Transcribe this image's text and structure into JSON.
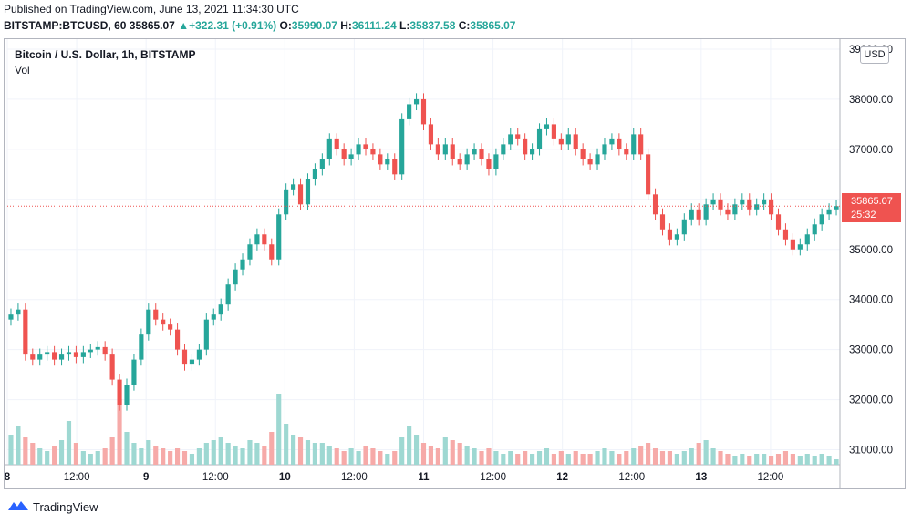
{
  "published": "Published on TradingView.com, June 13, 2021 11:34:30 UTC",
  "quote": {
    "symbol": "BITSTAMP:BTCUSD, 60",
    "last": "35865.07",
    "change": "+322.31 (+0.91%)",
    "o_label": "O:",
    "o": "35990.07",
    "h_label": "H:",
    "h": "36111.24",
    "l_label": "L:",
    "l": "35837.58",
    "c_label": "C:",
    "c": "35865.07"
  },
  "legend": {
    "title": "Bitcoin / U.S. Dollar, 1h, BITSTAMP",
    "vol": "Vol"
  },
  "currency_button": "USD",
  "price_label": {
    "price": "35865.07",
    "countdown": "25:32"
  },
  "brand": "TradingView",
  "colors": {
    "up": "#26a69a",
    "down": "#ef5350",
    "up_vol": "#9ed8d2",
    "down_vol": "#f6aaa8"
  },
  "chart_data": {
    "type": "candlestick",
    "y_ticks": [
      "39000.00",
      "38000.00",
      "37000.00",
      "36000.00",
      "35000.00",
      "34000.00",
      "33000.00",
      "32000.00",
      "31000.00"
    ],
    "y_tick_values": [
      39000,
      38000,
      37000,
      36000,
      35000,
      34000,
      33000,
      32000,
      31000
    ],
    "x_ticks": [
      "8",
      "12:00",
      "9",
      "12:00",
      "10",
      "12:00",
      "11",
      "12:00",
      "12",
      "12:00",
      "13",
      "12:00"
    ],
    "x_tick_hours": [
      0,
      12,
      24,
      36,
      48,
      60,
      72,
      84,
      96,
      108,
      120,
      132
    ],
    "x_start_hour": 0,
    "hours_span": 144,
    "ylim": [
      30700,
      39200
    ],
    "last_price": 35865.07,
    "closes": [
      33700,
      33800,
      32900,
      32800,
      32900,
      32950,
      32800,
      32900,
      32950,
      32850,
      32950,
      33000,
      33050,
      32900,
      32400,
      31900,
      32300,
      32800,
      33300,
      33800,
      33600,
      33500,
      33400,
      33000,
      32700,
      32800,
      33000,
      33600,
      33700,
      33900,
      34300,
      34600,
      34800,
      35100,
      35300,
      35100,
      34800,
      35700,
      36200,
      36300,
      35900,
      36400,
      36600,
      36800,
      37200,
      37000,
      36800,
      36900,
      37100,
      37000,
      36900,
      36700,
      36800,
      36500,
      37600,
      37900,
      38000,
      37500,
      37100,
      36900,
      37100,
      36800,
      36700,
      36900,
      37000,
      36800,
      36600,
      36900,
      37100,
      37300,
      37200,
      36900,
      37000,
      37400,
      37500,
      37200,
      37100,
      37300,
      37000,
      36800,
      36700,
      36900,
      37100,
      37200,
      37000,
      36900,
      37300,
      36900,
      36100,
      35700,
      35400,
      35200,
      35300,
      35600,
      35800,
      35600,
      35900,
      36000,
      35800,
      35700,
      35900,
      36000,
      35800,
      35900,
      36000,
      35700,
      35400,
      35200,
      35000,
      35100,
      35300,
      35500,
      35700,
      35800,
      35865
    ],
    "volumes": [
      1.1,
      1.4,
      1.0,
      0.8,
      0.6,
      0.5,
      0.7,
      0.9,
      1.6,
      0.8,
      0.5,
      0.4,
      0.5,
      0.6,
      1.0,
      2.4,
      1.2,
      0.8,
      0.6,
      0.9,
      0.7,
      0.6,
      0.5,
      0.6,
      0.5,
      0.4,
      0.6,
      0.8,
      0.9,
      1.0,
      0.8,
      0.7,
      0.6,
      0.9,
      0.8,
      0.7,
      1.2,
      2.6,
      1.5,
      1.1,
      1.0,
      0.9,
      0.8,
      0.8,
      0.7,
      0.6,
      0.5,
      0.6,
      0.5,
      0.7,
      0.6,
      0.5,
      0.4,
      0.5,
      1.0,
      1.4,
      1.1,
      0.8,
      0.7,
      0.6,
      1.0,
      0.9,
      0.8,
      0.7,
      0.6,
      0.5,
      0.6,
      0.5,
      0.4,
      0.5,
      0.4,
      0.5,
      0.4,
      0.5,
      0.6,
      0.4,
      0.5,
      0.4,
      0.5,
      0.4,
      0.4,
      0.5,
      0.6,
      0.5,
      0.4,
      0.5,
      0.6,
      0.7,
      0.8,
      0.6,
      0.5,
      0.5,
      0.4,
      0.5,
      0.6,
      0.8,
      0.9,
      0.6,
      0.5,
      0.4,
      0.3,
      0.4,
      0.3,
      0.4,
      0.4,
      0.3,
      0.4,
      0.5,
      0.4,
      0.3,
      0.4,
      0.3,
      0.4,
      0.3,
      0.2
    ]
  }
}
